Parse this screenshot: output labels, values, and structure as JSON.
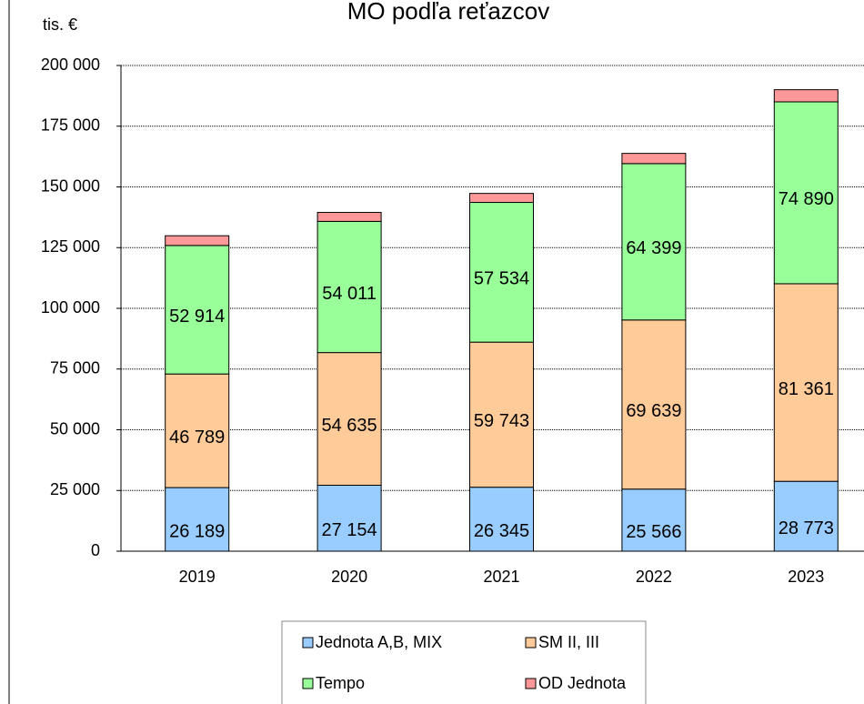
{
  "chart_data": {
    "type": "stacked_bar",
    "title": "MO podľa reťazcov",
    "y_axis_label": "tis. €",
    "categories": [
      "2019",
      "2020",
      "2021",
      "2022",
      "2023"
    ],
    "series": [
      {
        "name": "Jednota A,B, MIX",
        "color": "#99ccff",
        "values": [
          26189,
          27154,
          26345,
          25566,
          28773
        ],
        "value_labels": [
          "26 189",
          "27 154",
          "26 345",
          "25 566",
          "28 773"
        ]
      },
      {
        "name": "SM II, III",
        "color": "#ffcc99",
        "values": [
          46789,
          54635,
          59743,
          69639,
          81361
        ],
        "value_labels": [
          "46 789",
          "54 635",
          "59 743",
          "69 639",
          "81 361"
        ]
      },
      {
        "name": "Tempo",
        "color": "#99ff99",
        "values": [
          52914,
          54011,
          57534,
          64399,
          74890
        ],
        "value_labels": [
          "52 914",
          "54 011",
          "57 534",
          "64 399",
          "74 890"
        ]
      },
      {
        "name": "OD Jednota",
        "color": "#ff9999",
        "values": [
          4000,
          3700,
          3700,
          4200,
          5000
        ]
      }
    ],
    "ylim": [
      0,
      200000
    ],
    "yticks": [
      0,
      {
        "value": 25000,
        "label": "25 000"
      },
      {
        "value": 50000,
        "label": "50 000"
      },
      {
        "value": 75000,
        "label": "75 000"
      },
      {
        "value": 100000,
        "label": "100 000"
      },
      {
        "value": 125000,
        "label": "125 000"
      },
      {
        "value": 150000,
        "label": "150 000"
      },
      {
        "value": 175000,
        "label": "175 000"
      },
      {
        "value": 200000,
        "label": "200 000"
      }
    ],
    "grid": true,
    "legend": "bottom"
  }
}
